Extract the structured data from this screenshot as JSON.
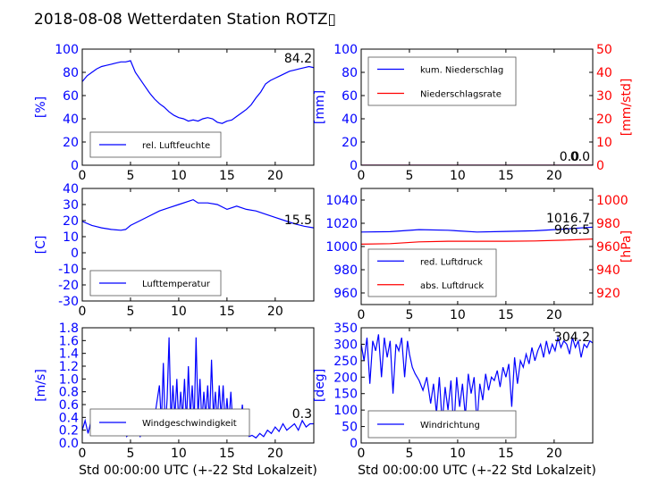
{
  "title": "2018-08-08 Wetterdaten Station ROTZ▯",
  "colors": {
    "left_axis": "#0000ff",
    "right_axis": "#ff0000",
    "ticks": "#000000",
    "legend_border": "#555555"
  },
  "chart_data": [
    {
      "type": "line",
      "ylabel": "[%]",
      "xlim": [
        0,
        24
      ],
      "ylim": [
        0,
        100
      ],
      "xticks": [
        0,
        5,
        10,
        15,
        20
      ],
      "yticks": [
        0,
        20,
        40,
        60,
        80,
        100
      ],
      "last_value_label": "84.2",
      "legend": "bottom-left",
      "series": [
        {
          "name": "rel. Luftfeuchte",
          "color": "#0000ff",
          "x": [
            0,
            0.5,
            1,
            1.5,
            2,
            2.5,
            3,
            3.5,
            4,
            4.5,
            5,
            5.5,
            6,
            6.5,
            7,
            7.5,
            8,
            8.5,
            9,
            9.5,
            10,
            10.5,
            11,
            11.5,
            12,
            12.5,
            13,
            13.5,
            14,
            14.5,
            15,
            15.5,
            16,
            16.5,
            17,
            17.5,
            18,
            18.5,
            19,
            19.5,
            20,
            20.5,
            21,
            21.5,
            22,
            22.5,
            23,
            23.5,
            24
          ],
          "y": [
            72,
            77,
            80,
            83,
            85,
            86,
            87,
            88,
            89,
            89,
            90,
            80,
            74,
            68,
            62,
            57,
            53,
            50,
            46,
            43,
            41,
            40,
            38,
            39,
            38,
            40,
            41,
            40,
            37,
            36,
            38,
            39,
            42,
            45,
            48,
            52,
            58,
            63,
            70,
            73,
            75,
            77,
            79,
            81,
            82,
            83,
            84,
            85,
            84
          ]
        }
      ]
    },
    {
      "type": "line",
      "ylabel": "[mm]",
      "ylabel_right": "[mm/std]",
      "xlim": [
        0,
        24
      ],
      "ylim": [
        0,
        100
      ],
      "ylim_right": [
        0,
        50
      ],
      "xticks": [
        0,
        5,
        10,
        15,
        20
      ],
      "yticks": [
        0,
        20,
        40,
        60,
        80,
        100
      ],
      "yticks_right": [
        0,
        10,
        20,
        30,
        40,
        50
      ],
      "last_value_label": "0.0",
      "last_value_label_2": "0.0",
      "legend": "top-left",
      "series": [
        {
          "name": "kum. Niederschlag",
          "axis": "left",
          "color": "#0000ff",
          "x": [
            0,
            24
          ],
          "y": [
            0,
            0
          ]
        },
        {
          "name": "Niederschlagsrate",
          "axis": "right",
          "color": "#ff0000",
          "x": [
            0,
            24
          ],
          "y": [
            0,
            0
          ]
        }
      ]
    },
    {
      "type": "line",
      "ylabel": "[C]",
      "xlim": [
        0,
        24
      ],
      "ylim": [
        -30,
        40
      ],
      "xticks": [
        0,
        5,
        10,
        15,
        20
      ],
      "yticks": [
        -30,
        -20,
        -10,
        0,
        10,
        20,
        30,
        40
      ],
      "last_value_label": "15.5",
      "legend": "bottom-left",
      "series": [
        {
          "name": "Lufttemperatur",
          "color": "#0000ff",
          "x": [
            0,
            1,
            2,
            3,
            4,
            4.5,
            5,
            6,
            7,
            8,
            9,
            10,
            11,
            11.5,
            12,
            13,
            14,
            15,
            16,
            17,
            18,
            19,
            20,
            21,
            22,
            23,
            24
          ],
          "y": [
            19.5,
            17,
            15.5,
            14.5,
            14,
            14.5,
            17,
            20,
            23,
            26,
            28,
            30,
            32,
            33,
            31,
            31,
            30,
            27,
            29,
            27,
            26,
            24,
            22,
            20,
            18,
            16.5,
            15.5
          ]
        }
      ]
    },
    {
      "type": "line",
      "ylabel": "",
      "ylabel_right": "[hPa]",
      "xlim": [
        0,
        24
      ],
      "ylim": [
        950,
        1050
      ],
      "ylim_right": [
        910,
        1010
      ],
      "xticks": [
        0,
        5,
        10,
        15,
        20
      ],
      "yticks": [
        960,
        980,
        1000,
        1020,
        1040
      ],
      "yticks_right": [
        920,
        940,
        960,
        980,
        1000
      ],
      "last_value_label": "1016.7",
      "last_value_label_2": "966.5",
      "legend": "bottom-left",
      "series": [
        {
          "name": "red. Luftdruck",
          "axis": "left",
          "color": "#0000ff",
          "x": [
            0,
            3,
            6,
            9,
            12,
            15,
            18,
            21,
            24
          ],
          "y": [
            1012.5,
            1012.8,
            1014.5,
            1014,
            1012.5,
            1013,
            1013.5,
            1015,
            1016.7
          ]
        },
        {
          "name": "abs. Luftdruck",
          "axis": "right",
          "color": "#ff0000",
          "x": [
            0,
            3,
            6,
            9,
            12,
            15,
            18,
            21,
            24
          ],
          "y": [
            962,
            962.5,
            964,
            964.5,
            964.5,
            964.5,
            964.8,
            965.5,
            966.5
          ]
        }
      ]
    },
    {
      "type": "line",
      "ylabel": "[m/s]",
      "xlabel": "Std 00:00:00 UTC (+-22 Std Lokalzeit)",
      "xlim": [
        0,
        24
      ],
      "ylim": [
        0,
        1.8
      ],
      "xticks": [
        0,
        5,
        10,
        15,
        20
      ],
      "yticks": [
        0.0,
        0.2,
        0.4,
        0.6,
        0.8,
        1.0,
        1.2,
        1.4,
        1.6,
        1.8
      ],
      "last_value_label": "0.3",
      "legend": "bottom-left",
      "series": [
        {
          "name": "Windgeschwindigkeit",
          "color": "#0000ff",
          "x": [
            0,
            0.3,
            0.6,
            1,
            1.3,
            1.6,
            2,
            2.3,
            2.6,
            3,
            3.3,
            3.6,
            4,
            4.3,
            4.6,
            5,
            5.3,
            5.6,
            6,
            6.3,
            6.6,
            7,
            7.3,
            7.6,
            8,
            8.2,
            8.4,
            8.6,
            8.8,
            9,
            9.2,
            9.4,
            9.6,
            9.8,
            10,
            10.2,
            10.4,
            10.6,
            10.8,
            11,
            11.2,
            11.4,
            11.6,
            11.8,
            12,
            12.2,
            12.4,
            12.6,
            12.8,
            13,
            13.2,
            13.4,
            13.6,
            13.8,
            14,
            14.2,
            14.4,
            14.6,
            14.8,
            15,
            15.2,
            15.4,
            15.6,
            15.8,
            16,
            16.2,
            16.4,
            16.6,
            16.8,
            17,
            17.3,
            17.6,
            18,
            18.4,
            18.8,
            19.2,
            19.6,
            20,
            20.4,
            20.8,
            21.2,
            21.6,
            22,
            22.4,
            22.8,
            23.2,
            23.6,
            24
          ],
          "y": [
            0.2,
            0.35,
            0.15,
            0.4,
            0.2,
            0.45,
            0.25,
            0.4,
            0.15,
            0.45,
            0.2,
            0.35,
            0.15,
            0.3,
            0.1,
            0.15,
            0.12,
            0.2,
            0.1,
            0.25,
            0.15,
            0.3,
            0.2,
            0.5,
            0.9,
            0.3,
            1.25,
            0.2,
            0.7,
            1.65,
            0.3,
            0.9,
            0.4,
            1.0,
            0.3,
            0.8,
            0.4,
            1.0,
            0.3,
            1.2,
            0.4,
            0.9,
            0.3,
            1.65,
            0.4,
            1.0,
            0.3,
            0.8,
            0.4,
            0.9,
            0.3,
            1.3,
            0.4,
            0.8,
            0.3,
            0.9,
            0.4,
            0.9,
            0.3,
            0.7,
            0.3,
            0.8,
            0.3,
            0.5,
            0.25,
            0.45,
            0.3,
            0.6,
            0.2,
            0.15,
            0.1,
            0.12,
            0.08,
            0.15,
            0.1,
            0.2,
            0.15,
            0.25,
            0.18,
            0.3,
            0.2,
            0.25,
            0.3,
            0.2,
            0.35,
            0.25,
            0.3,
            0.3
          ]
        }
      ]
    },
    {
      "type": "line",
      "ylabel": "[deg]",
      "xlabel": "Std 00:00:00 UTC (+-22 Std Lokalzeit)",
      "xlim": [
        0,
        24
      ],
      "ylim": [
        0,
        350
      ],
      "xticks": [
        0,
        5,
        10,
        15,
        20
      ],
      "yticks": [
        0,
        50,
        100,
        150,
        200,
        250,
        300,
        350
      ],
      "last_value_label": "304.2",
      "legend": "bottom-left",
      "series": [
        {
          "name": "Windrichtung",
          "color": "#0000ff",
          "x": [
            0,
            0.3,
            0.6,
            0.9,
            1.2,
            1.5,
            1.8,
            2.1,
            2.4,
            2.7,
            3,
            3.3,
            3.6,
            3.9,
            4.2,
            4.5,
            4.8,
            5,
            5.3,
            5.6,
            6,
            6.4,
            6.8,
            7.2,
            7.5,
            7.8,
            8.1,
            8.4,
            8.7,
            9,
            9.3,
            9.6,
            9.9,
            10.2,
            10.5,
            10.8,
            11.1,
            11.4,
            11.7,
            12,
            12.3,
            12.6,
            12.9,
            13.2,
            13.5,
            13.8,
            14.1,
            14.4,
            14.7,
            15,
            15.3,
            15.6,
            15.9,
            16.2,
            16.5,
            16.8,
            17.1,
            17.4,
            17.7,
            18,
            18.3,
            18.6,
            18.9,
            19.2,
            19.5,
            19.8,
            20.1,
            20.4,
            20.7,
            21,
            21.3,
            21.6,
            21.9,
            22.2,
            22.5,
            22.8,
            23.1,
            23.4,
            23.7,
            24
          ],
          "y": [
            300,
            250,
            320,
            180,
            310,
            280,
            330,
            200,
            320,
            260,
            310,
            150,
            300,
            280,
            320,
            200,
            310,
            270,
            230,
            210,
            190,
            160,
            200,
            120,
            180,
            90,
            200,
            60,
            170,
            100,
            190,
            40,
            200,
            110,
            180,
            80,
            210,
            150,
            200,
            60,
            180,
            130,
            210,
            160,
            200,
            190,
            220,
            170,
            230,
            200,
            240,
            110,
            260,
            180,
            250,
            230,
            270,
            240,
            290,
            250,
            280,
            300,
            260,
            310,
            270,
            300,
            280,
            320,
            290,
            310,
            300,
            270,
            320,
            290,
            310,
            260,
            300,
            290,
            310,
            304
          ]
        }
      ]
    }
  ]
}
